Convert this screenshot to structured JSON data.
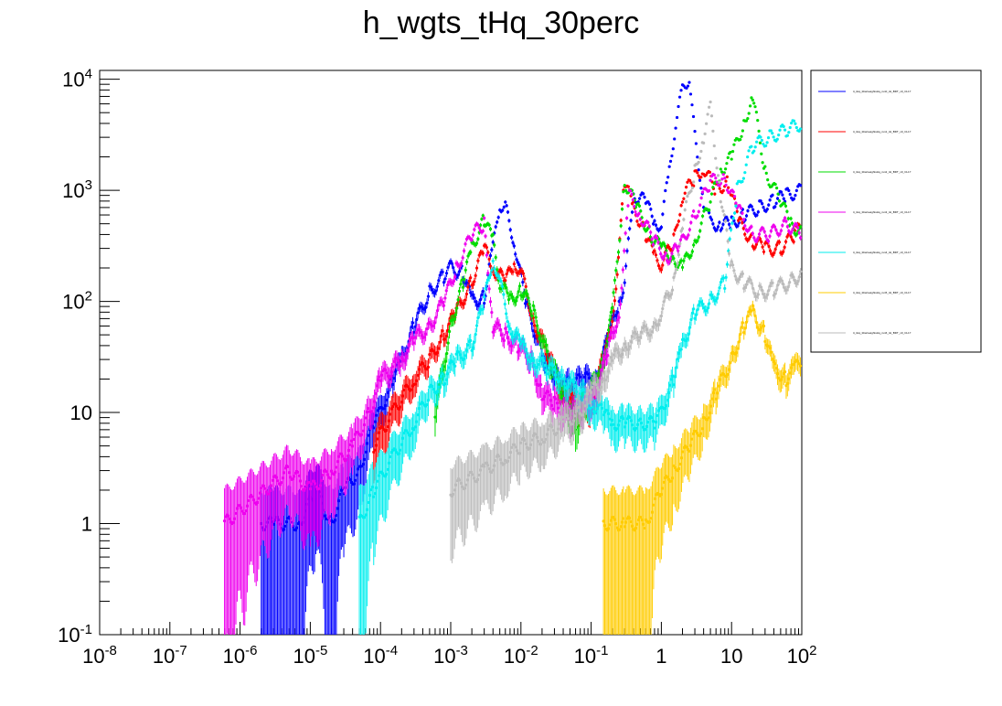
{
  "chart_data": {
    "type": "scatter",
    "title": "h_wgts_tHq_30perc",
    "xlabel": "",
    "ylabel": "",
    "x_scale": "log",
    "y_scale": "log",
    "xlim": [
      1e-08,
      100
    ],
    "ylim": [
      0.1,
      12000
    ],
    "grid": false,
    "legend_position": "top-right",
    "x_tick_labels": [
      "10^-8",
      "10^-7",
      "10^-6",
      "10^-5",
      "10^-4",
      "10^-3",
      "10^-2",
      "10^-1",
      "1",
      "10",
      "10^2"
    ],
    "y_tick_labels": [
      "10^-1",
      "1",
      "10",
      "10^2",
      "10^3",
      "10^4"
    ],
    "series": [
      {
        "name": "tt_tHq_ttbarweightsHq_run0_tH_BDT_v0_CL17",
        "color": "#0000ff",
        "points": [
          [
            2e-06,
            1
          ],
          [
            3e-06,
            1
          ],
          [
            7e-06,
            1
          ],
          [
            1.2e-05,
            2
          ],
          [
            2e-05,
            1
          ],
          [
            3e-05,
            2
          ],
          [
            5e-05,
            3
          ],
          [
            8e-05,
            8
          ],
          [
            0.0001,
            10
          ],
          [
            0.00015,
            20
          ],
          [
            0.0002,
            30
          ],
          [
            0.0003,
            60
          ],
          [
            0.0005,
            120
          ],
          [
            0.0008,
            170
          ],
          [
            0.001,
            200
          ],
          [
            0.0015,
            180
          ],
          [
            0.002,
            100
          ],
          [
            0.003,
            110
          ],
          [
            0.004,
            300
          ],
          [
            0.005,
            750
          ],
          [
            0.006,
            700
          ],
          [
            0.008,
            350
          ],
          [
            0.012,
            90
          ],
          [
            0.02,
            35
          ],
          [
            0.03,
            20
          ],
          [
            0.05,
            18
          ],
          [
            0.08,
            20
          ],
          [
            0.12,
            20
          ],
          [
            0.18,
            50
          ],
          [
            0.25,
            100
          ],
          [
            0.3,
            150
          ],
          [
            0.4,
            900
          ],
          [
            0.6,
            800
          ],
          [
            0.8,
            500
          ],
          [
            1,
            500
          ],
          [
            1.3,
            1500
          ],
          [
            1.6,
            4000
          ],
          [
            2,
            8000
          ],
          [
            2.5,
            10500
          ],
          [
            3,
            3000
          ],
          [
            4,
            800
          ],
          [
            5,
            500
          ],
          [
            7,
            500
          ],
          [
            10,
            500
          ],
          [
            15,
            600
          ],
          [
            25,
            700
          ],
          [
            40,
            800
          ],
          [
            60,
            900
          ],
          [
            100,
            1000
          ]
        ]
      },
      {
        "name": "tt_tHq_ttbarweightsHq_run1_tH_BDT_v0_CL17",
        "color": "#ff0000",
        "points": [
          [
            8e-05,
            5
          ],
          [
            0.00015,
            10
          ],
          [
            0.0003,
            20
          ],
          [
            0.0005,
            30
          ],
          [
            0.0008,
            50
          ],
          [
            0.0012,
            80
          ],
          [
            0.002,
            150
          ],
          [
            0.003,
            300
          ],
          [
            0.004,
            200
          ],
          [
            0.006,
            150
          ],
          [
            0.008,
            220
          ],
          [
            0.01,
            190
          ],
          [
            0.015,
            70
          ],
          [
            0.025,
            30
          ],
          [
            0.04,
            15
          ],
          [
            0.07,
            12
          ],
          [
            0.1,
            12
          ],
          [
            0.15,
            30
          ],
          [
            0.2,
            60
          ],
          [
            0.3,
            1200
          ],
          [
            0.4,
            700
          ],
          [
            0.6,
            400
          ],
          [
            0.8,
            250
          ],
          [
            1,
            220
          ],
          [
            1.5,
            350
          ],
          [
            2,
            900
          ],
          [
            3,
            1300
          ],
          [
            4,
            1600
          ],
          [
            6,
            1000
          ],
          [
            9,
            1200
          ],
          [
            13,
            500
          ],
          [
            20,
            350
          ],
          [
            30,
            300
          ],
          [
            50,
            300
          ],
          [
            80,
            400
          ],
          [
            100,
            500
          ]
        ]
      },
      {
        "name": "tt_tHq_ttbarweightsHq_run2_tH_BDT_v0_CL17",
        "color": "#00dd00",
        "points": [
          [
            0.0006,
            10
          ],
          [
            0.001,
            60
          ],
          [
            0.0015,
            150
          ],
          [
            0.002,
            300
          ],
          [
            0.003,
            550
          ],
          [
            0.004,
            350
          ],
          [
            0.005,
            150
          ],
          [
            0.007,
            100
          ],
          [
            0.01,
            130
          ],
          [
            0.015,
            80
          ],
          [
            0.025,
            30
          ],
          [
            0.04,
            15
          ],
          [
            0.06,
            8
          ],
          [
            0.1,
            15
          ],
          [
            0.15,
            30
          ],
          [
            0.2,
            80
          ],
          [
            0.3,
            1200
          ],
          [
            0.45,
            700
          ],
          [
            0.7,
            400
          ],
          [
            1,
            300
          ],
          [
            1.5,
            250
          ],
          [
            2,
            200
          ],
          [
            3,
            350
          ],
          [
            5,
            800
          ],
          [
            7,
            1500
          ],
          [
            10,
            2000
          ],
          [
            15,
            4000
          ],
          [
            20,
            7000
          ],
          [
            30,
            1500
          ],
          [
            50,
            800
          ],
          [
            70,
            500
          ],
          [
            100,
            400
          ]
        ]
      },
      {
        "name": "tt_tHq_ttbarweightsHq_run3_tH_BDT_v0_CL17",
        "color": "#ee00ee",
        "points": [
          [
            6e-07,
            1
          ],
          [
            5e-06,
            3
          ],
          [
            1e-05,
            2
          ],
          [
            2e-05,
            3
          ],
          [
            4e-05,
            5
          ],
          [
            7e-05,
            10
          ],
          [
            0.0001,
            20
          ],
          [
            0.0002,
            30
          ],
          [
            0.0003,
            45
          ],
          [
            0.0005,
            60
          ],
          [
            0.0008,
            100
          ],
          [
            0.0012,
            200
          ],
          [
            0.002,
            400
          ],
          [
            0.003,
            500
          ],
          [
            0.004,
            60
          ],
          [
            0.006,
            50
          ],
          [
            0.009,
            40
          ],
          [
            0.014,
            30
          ],
          [
            0.02,
            15
          ],
          [
            0.03,
            12
          ],
          [
            0.05,
            10
          ],
          [
            0.08,
            12
          ],
          [
            0.12,
            15
          ],
          [
            0.18,
            40
          ],
          [
            0.25,
            80
          ],
          [
            0.35,
            900
          ],
          [
            0.5,
            600
          ],
          [
            0.8,
            350
          ],
          [
            1.2,
            250
          ],
          [
            1.8,
            300
          ],
          [
            3,
            600
          ],
          [
            5,
            1200
          ],
          [
            8,
            1300
          ],
          [
            12,
            700
          ],
          [
            20,
            400
          ],
          [
            35,
            400
          ],
          [
            60,
            500
          ],
          [
            100,
            400
          ]
        ]
      },
      {
        "name": "tt_tHq_ttbarweightsHq_run4_tH_BDT_v0_CL17",
        "color": "#00eeee",
        "points": [
          [
            5e-05,
            1
          ],
          [
            8e-05,
            2
          ],
          [
            0.00015,
            4
          ],
          [
            0.0003,
            8
          ],
          [
            0.0005,
            15
          ],
          [
            0.0008,
            20
          ],
          [
            0.0012,
            30
          ],
          [
            0.002,
            40
          ],
          [
            0.003,
            100
          ],
          [
            0.004,
            250
          ],
          [
            0.005,
            150
          ],
          [
            0.007,
            60
          ],
          [
            0.01,
            40
          ],
          [
            0.015,
            30
          ],
          [
            0.025,
            25
          ],
          [
            0.04,
            20
          ],
          [
            0.07,
            15
          ],
          [
            0.1,
            12
          ],
          [
            0.15,
            10
          ],
          [
            0.2,
            8
          ],
          [
            0.3,
            8
          ],
          [
            0.5,
            8
          ],
          [
            0.8,
            8
          ],
          [
            1,
            10
          ],
          [
            1.5,
            20
          ],
          [
            2,
            40
          ],
          [
            3,
            80
          ],
          [
            5,
            100
          ],
          [
            8,
            150
          ],
          [
            12,
            1000
          ],
          [
            20,
            2500
          ],
          [
            35,
            3000
          ],
          [
            60,
            3500
          ],
          [
            100,
            4000
          ]
        ]
      },
      {
        "name": "tt_tHq_ttbarweightsHq_run5_tH_BDT_v0_CL17",
        "color": "#ffcc00",
        "points": [
          [
            0.15,
            1
          ],
          [
            0.3,
            1
          ],
          [
            0.6,
            1
          ],
          [
            1,
            2
          ],
          [
            1.5,
            3
          ],
          [
            2.5,
            5
          ],
          [
            4,
            8
          ],
          [
            6,
            15
          ],
          [
            10,
            30
          ],
          [
            15,
            60
          ],
          [
            20,
            80
          ],
          [
            30,
            50
          ],
          [
            40,
            25
          ],
          [
            60,
            20
          ],
          [
            80,
            25
          ],
          [
            100,
            30
          ]
        ]
      },
      {
        "name": "tt_tHq_ttbarweightsHq_run6_tH_BDT_v0_CL17",
        "color": "#bbbbbb",
        "points": [
          [
            0.001,
            2
          ],
          [
            0.003,
            3
          ],
          [
            0.006,
            4
          ],
          [
            0.01,
            5
          ],
          [
            0.02,
            6
          ],
          [
            0.04,
            8
          ],
          [
            0.07,
            10
          ],
          [
            0.1,
            15
          ],
          [
            0.15,
            20
          ],
          [
            0.2,
            30
          ],
          [
            0.3,
            40
          ],
          [
            0.5,
            50
          ],
          [
            0.8,
            60
          ],
          [
            1,
            80
          ],
          [
            1.5,
            150
          ],
          [
            2,
            500
          ],
          [
            3,
            1500
          ],
          [
            4,
            3000
          ],
          [
            5,
            5500
          ],
          [
            7,
            900
          ],
          [
            10,
            200
          ],
          [
            15,
            150
          ],
          [
            25,
            120
          ],
          [
            40,
            130
          ],
          [
            70,
            150
          ],
          [
            100,
            180
          ]
        ]
      }
    ]
  }
}
